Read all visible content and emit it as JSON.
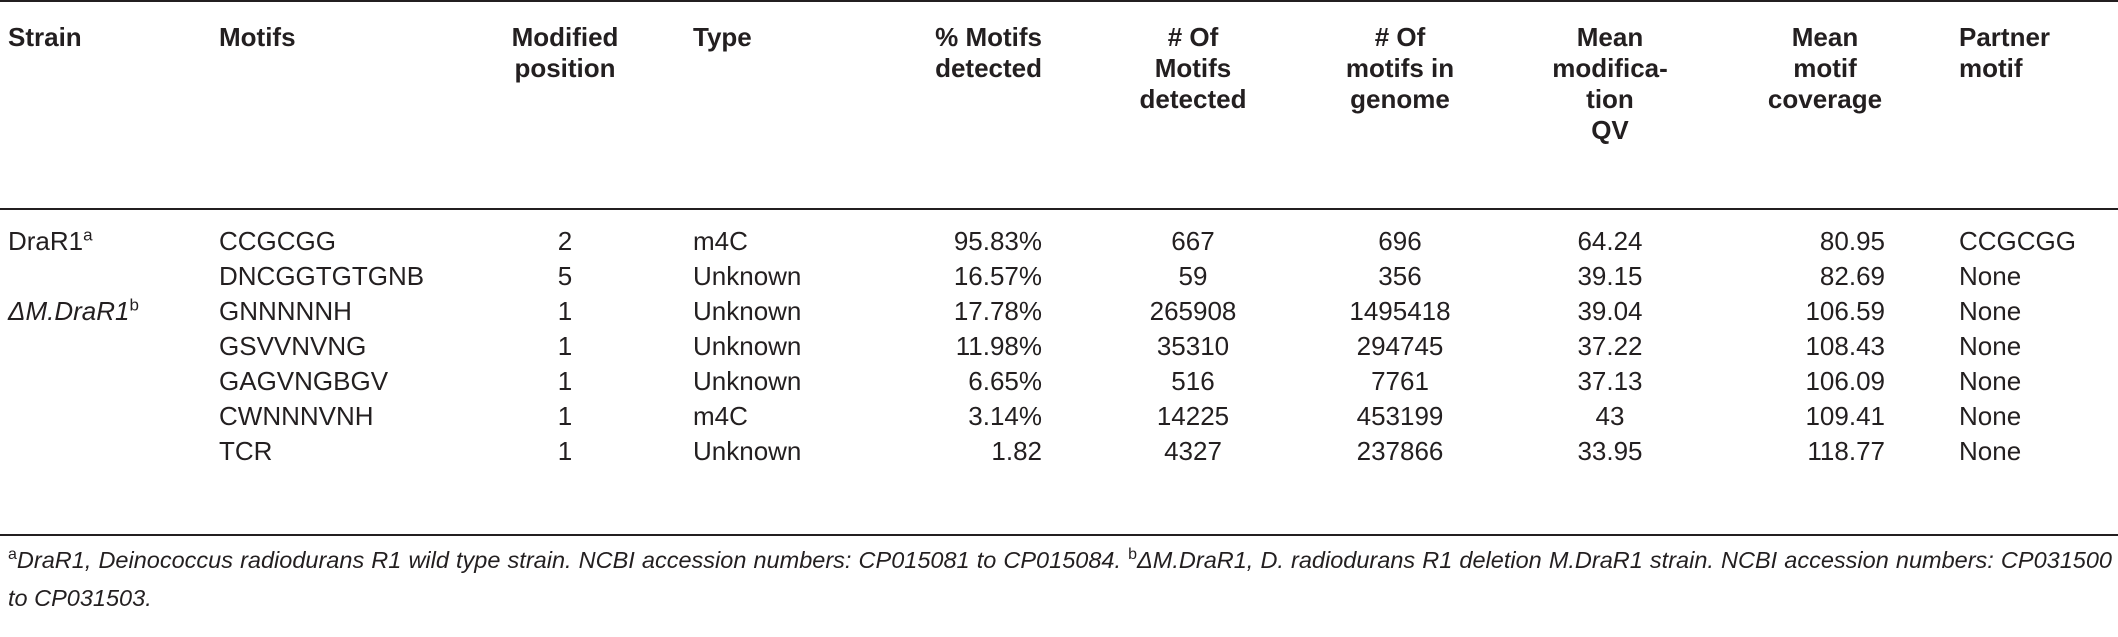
{
  "headers": [
    "Strain",
    "Motifs",
    "Modified\nposition",
    "Type",
    "% Motifs\ndetected",
    "# Of\nMotifs\ndetected",
    "# Of\nmotifs in\ngenome",
    "Mean\nmodifica-\ntion\nQV",
    "Mean\nmotif\ncoverage",
    "Partner\nmotif"
  ],
  "strains": {
    "s1": {
      "name": "DraR1",
      "sup": "a"
    },
    "s2": {
      "name": "ΔM.DraR1",
      "sup": "b"
    }
  },
  "rows": [
    {
      "motif": "CCGCGG",
      "position": "2",
      "type": "m4C",
      "pct": "95.83%",
      "detected": "667",
      "in_genome": "696",
      "qv": "64.24",
      "coverage": "80.95",
      "partner": "CCGCGG"
    },
    {
      "motif": "DNCGGTGTGNB",
      "position": "5",
      "type": "Unknown",
      "pct": "16.57%",
      "detected": "59",
      "in_genome": "356",
      "qv": "39.15",
      "coverage": "82.69",
      "partner": "None"
    },
    {
      "motif": "GNNNNNH",
      "position": "1",
      "type": "Unknown",
      "pct": "17.78%",
      "detected": "265908",
      "in_genome": "1495418",
      "qv": "39.04",
      "coverage": "106.59",
      "partner": "None"
    },
    {
      "motif": "GSVVNVNG",
      "position": "1",
      "type": "Unknown",
      "pct": "11.98%",
      "detected": "35310",
      "in_genome": "294745",
      "qv": "37.22",
      "coverage": "108.43",
      "partner": "None"
    },
    {
      "motif": "GAGVNGBGV",
      "position": "1",
      "type": "Unknown",
      "pct": "6.65%",
      "detected": "516",
      "in_genome": "7761",
      "qv": "37.13",
      "coverage": "106.09",
      "partner": "None"
    },
    {
      "motif": "CWNNNVNH",
      "position": "1",
      "type": "m4C",
      "pct": "3.14%",
      "detected": "14225",
      "in_genome": "453199",
      "qv": "43",
      "coverage": "109.41",
      "partner": "None"
    },
    {
      "motif": "TCR",
      "position": "1",
      "type": "Unknown",
      "pct": "1.82",
      "detected": "4327",
      "in_genome": "237866",
      "qv": "33.95",
      "coverage": "118.77",
      "partner": "None"
    }
  ],
  "footnote": {
    "a_mark": "a",
    "a_text": "DraR1, Deinococcus radiodurans R1 wild type strain. NCBI accession numbers: CP015081 to CP015084.",
    "b_mark": "b",
    "b_text": "ΔM.DraR1, D. radiodurans R1 deletion M.DraR1 strain. NCBI accession numbers: CP031500 to CP031503."
  }
}
